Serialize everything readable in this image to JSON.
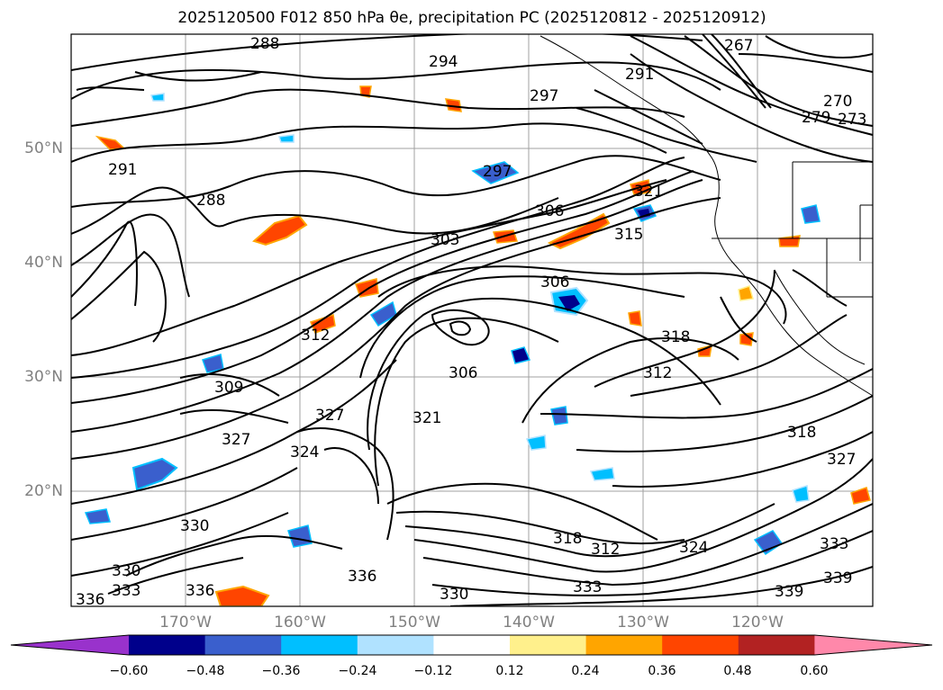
{
  "title": "2025120500 F012 850 hPa θe, precipitation PC (2025120812 - 2025120912)",
  "map": {
    "lon_labels": [
      "170°W",
      "160°W",
      "150°W",
      "140°W",
      "130°W",
      "120°W"
    ],
    "lat_labels": [
      "50°N",
      "40°N",
      "30°N",
      "20°N"
    ],
    "contour_labels": [
      "288",
      "294",
      "291",
      "297",
      "267",
      "270",
      "273",
      "279",
      "291",
      "288",
      "297",
      "306",
      "321",
      "303",
      "315",
      "306",
      "318",
      "312",
      "312",
      "309",
      "327",
      "321",
      "306",
      "324",
      "318",
      "327",
      "312",
      "318",
      "324",
      "333",
      "330",
      "330",
      "336",
      "333",
      "339",
      "339",
      "336",
      "330",
      "333",
      "336",
      "327"
    ]
  },
  "colorbar": {
    "ticks": [
      "−0.60",
      "−0.48",
      "−0.36",
      "−0.24",
      "−0.12",
      "0.12",
      "0.24",
      "0.36",
      "0.48",
      "0.60"
    ],
    "colors": [
      "#9932cc",
      "#00008b",
      "#3a5fcd",
      "#00bfff",
      "#b0e2ff",
      "#ffffff",
      "#fff08c",
      "#ffa500",
      "#ff4500",
      "#b22222",
      "#ff88aa"
    ]
  }
}
